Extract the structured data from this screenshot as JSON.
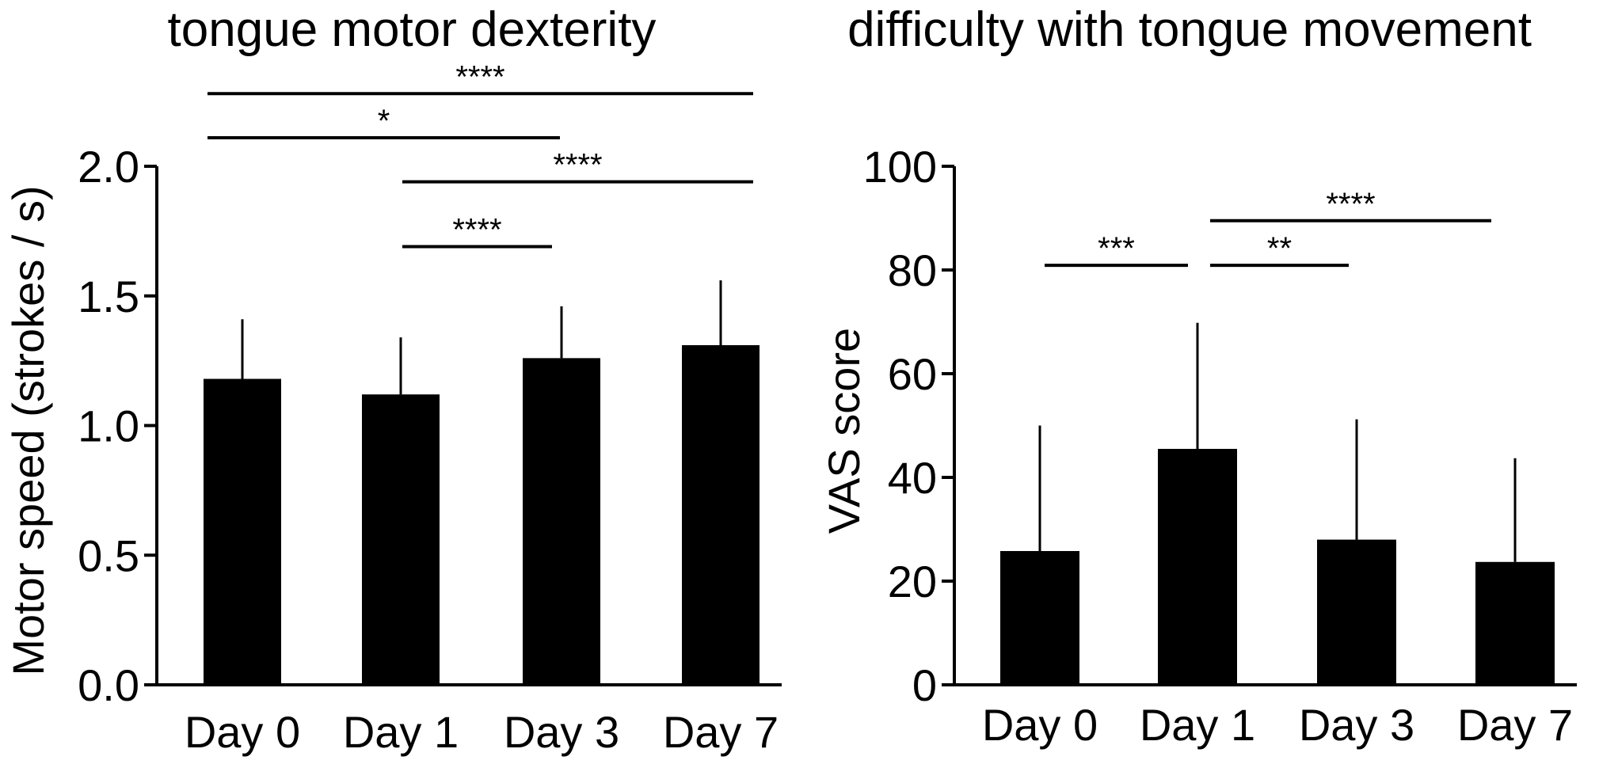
{
  "chart_data": [
    {
      "type": "bar",
      "title": "tongue motor dexterity",
      "xlabel": "",
      "ylabel": "Motor speed (strokes / s)",
      "categories": [
        "Day 0",
        "Day 1",
        "Day 3",
        "Day 7"
      ],
      "series": [
        {
          "values": [
            1.18,
            1.12,
            1.26,
            1.31
          ],
          "error_upper": [
            0.23,
            0.22,
            0.2,
            0.25
          ]
        }
      ],
      "ylim": [
        0,
        2.0
      ],
      "yticks": [
        0,
        0.5,
        1.0,
        1.5,
        2.0
      ],
      "ytick_labels": [
        "0.0",
        "0.5",
        "1.0",
        "1.5",
        "2.0"
      ],
      "grid": false,
      "bar_color": "#000000",
      "significance": [
        {
          "from": 0,
          "to": 3,
          "label": "****",
          "level": 2.28
        },
        {
          "from": 0,
          "to": 2,
          "label": "*",
          "level": 2.11
        },
        {
          "from": 1,
          "to": 3,
          "label": "****",
          "level": 1.94
        },
        {
          "from": 1,
          "to": 2,
          "label": "****",
          "level": 1.69
        }
      ]
    },
    {
      "type": "bar",
      "title": "difficulty with tongue movement",
      "xlabel": "",
      "ylabel": "VAS score",
      "categories": [
        "Day 0",
        "Day 1",
        "Day 3",
        "Day 7"
      ],
      "series": [
        {
          "values": [
            25.8,
            45.5,
            28.0,
            23.7
          ],
          "error_upper": [
            24.2,
            24.3,
            23.2,
            20.0
          ]
        }
      ],
      "ylim": [
        0,
        100
      ],
      "yticks": [
        0,
        20,
        40,
        60,
        80,
        100
      ],
      "ytick_labels": [
        "0",
        "20",
        "40",
        "60",
        "80",
        "100"
      ],
      "grid": false,
      "bar_color": "#000000",
      "significance": [
        {
          "from": 0,
          "to": 1,
          "label": "***",
          "level": 80.9
        },
        {
          "from": 1,
          "to": 2,
          "label": "**",
          "level": 80.9
        },
        {
          "from": 1,
          "to": 3,
          "label": "****",
          "level": 89.5
        }
      ]
    }
  ]
}
